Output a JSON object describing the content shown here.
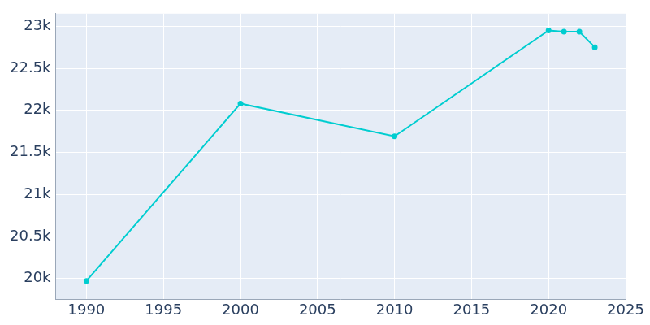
{
  "chart_data": {
    "type": "line",
    "x": [
      1990,
      2000,
      2010,
      2020,
      2021,
      2022,
      2023
    ],
    "values": [
      19970,
      22080,
      21690,
      22950,
      22935,
      22935,
      22750
    ],
    "color": "#00cdd0",
    "marker": "circle",
    "xlim": [
      1988,
      2025
    ],
    "xticks": [
      1990,
      1995,
      2000,
      2005,
      2010,
      2015,
      2020,
      2025
    ],
    "ylim": [
      19750,
      23150
    ],
    "yticks": [
      {
        "value": 20000,
        "label": "20k"
      },
      {
        "value": 20500,
        "label": "20.5k"
      },
      {
        "value": 21000,
        "label": "21k"
      },
      {
        "value": 21500,
        "label": "21.5k"
      },
      {
        "value": 22000,
        "label": "22k"
      },
      {
        "value": 22500,
        "label": "22.5k"
      },
      {
        "value": 23000,
        "label": "23k"
      }
    ],
    "grid": true
  }
}
